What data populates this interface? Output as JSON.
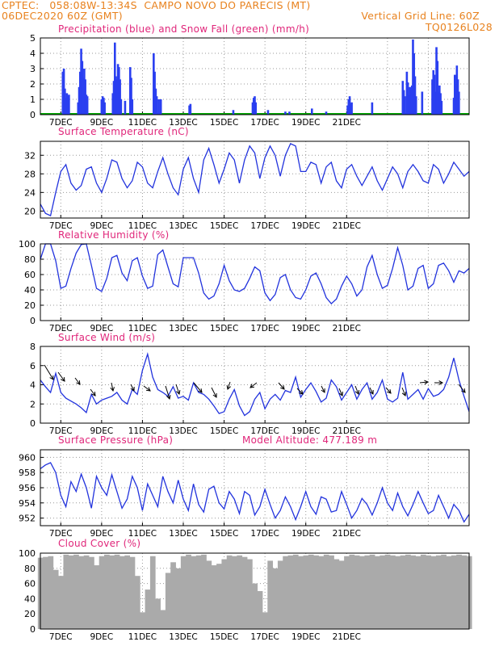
{
  "header": {
    "line1": "CPTEC:   058:08W-13:34S  CAMPO NOVO DO PARECIS (MT)",
    "line2_left": "06DEC2020 60Z (GMT)",
    "line2_right": "Vertical Grid Line: 60Z",
    "run_code": "TQ0126L028"
  },
  "x_tick_labels": [
    "7DEC",
    "9DEC",
    "11DEC",
    "13DEC",
    "15DEC",
    "17DEC",
    "19DEC",
    "21DEC"
  ],
  "colors": {
    "line": "#2233dd",
    "bar": "#2a3ff0",
    "snow": "#00aa00",
    "cloud": "#aaaaaa",
    "title": "#e0267a",
    "header": "#e8821e"
  },
  "chart_data": [
    {
      "type": "bar",
      "title": "Precipitation (blue) and Snow Fall (green) (mm/h)",
      "series": [
        {
          "name": "Precipitation"
        },
        {
          "name": "Snow Fall"
        }
      ],
      "y_ticks": [
        "0",
        "1",
        "2",
        "3",
        "4",
        "5"
      ],
      "ylim": [
        0,
        5
      ],
      "x_unit": "days since 6DEC 00Z",
      "bars": [
        [
          1.1,
          2.8
        ],
        [
          1.15,
          3.0
        ],
        [
          1.2,
          1.7
        ],
        [
          1.25,
          1.1
        ],
        [
          1.3,
          1.4
        ],
        [
          1.35,
          1.2
        ],
        [
          1.4,
          1.3
        ],
        [
          1.85,
          0.8
        ],
        [
          1.9,
          1.8
        ],
        [
          1.95,
          2.8
        ],
        [
          2.0,
          4.3
        ],
        [
          2.05,
          3.5
        ],
        [
          2.1,
          2.4
        ],
        [
          2.15,
          3.0
        ],
        [
          2.2,
          2.3
        ],
        [
          2.25,
          1.3
        ],
        [
          2.3,
          1.2
        ],
        [
          3.0,
          1.0
        ],
        [
          3.05,
          1.2
        ],
        [
          3.1,
          1.1
        ],
        [
          3.15,
          0.8
        ],
        [
          3.55,
          1.4
        ],
        [
          3.6,
          2.2
        ],
        [
          3.65,
          4.7
        ],
        [
          3.7,
          2.5
        ],
        [
          3.75,
          2.3
        ],
        [
          3.8,
          3.3
        ],
        [
          3.85,
          3.1
        ],
        [
          3.9,
          2.3
        ],
        [
          3.95,
          1.0
        ],
        [
          4.15,
          0.9
        ],
        [
          4.4,
          3.1
        ],
        [
          4.45,
          2.4
        ],
        [
          4.5,
          1.0
        ],
        [
          5.55,
          4.0
        ],
        [
          5.6,
          2.8
        ],
        [
          5.65,
          1.7
        ],
        [
          5.7,
          1.2
        ],
        [
          5.8,
          1.0
        ],
        [
          5.9,
          1.0
        ],
        [
          7.3,
          0.6
        ],
        [
          7.35,
          0.7
        ],
        [
          9.45,
          0.3
        ],
        [
          10.4,
          0.8
        ],
        [
          10.45,
          1.1
        ],
        [
          10.5,
          1.2
        ],
        [
          10.55,
          0.8
        ],
        [
          11.15,
          0.3
        ],
        [
          12.0,
          0.2
        ],
        [
          12.2,
          0.2
        ],
        [
          13.3,
          0.4
        ],
        [
          14.0,
          0.2
        ],
        [
          15.05,
          0.6
        ],
        [
          15.1,
          1.0
        ],
        [
          15.15,
          1.2
        ],
        [
          15.2,
          0.7
        ],
        [
          15.25,
          0.8
        ],
        [
          16.25,
          0.8
        ],
        [
          17.75,
          2.2
        ],
        [
          17.8,
          1.6
        ],
        [
          17.85,
          1.2
        ],
        [
          17.95,
          2.8
        ],
        [
          18.0,
          2.1
        ],
        [
          18.05,
          1.3
        ],
        [
          18.1,
          1.8
        ],
        [
          18.15,
          1.6
        ],
        [
          18.2,
          1.9
        ],
        [
          18.25,
          4.9
        ],
        [
          18.3,
          4.0
        ],
        [
          18.35,
          2.5
        ],
        [
          18.4,
          1.2
        ],
        [
          18.7,
          1.5
        ],
        [
          19.2,
          2.3
        ],
        [
          19.25,
          2.9
        ],
        [
          19.3,
          2.6
        ],
        [
          19.35,
          1.5
        ],
        [
          19.4,
          4.4
        ],
        [
          19.45,
          3.5
        ],
        [
          19.5,
          1.5
        ],
        [
          19.55,
          1.9
        ],
        [
          19.6,
          1.4
        ],
        [
          19.65,
          0.9
        ],
        [
          20.25,
          1.1
        ],
        [
          20.3,
          2.6
        ],
        [
          20.35,
          2.0
        ],
        [
          20.4,
          3.2
        ],
        [
          20.45,
          2.3
        ],
        [
          20.5,
          1.5
        ]
      ]
    },
    {
      "type": "line",
      "title": "Surface Temperature (nC)",
      "y_ticks": [
        "20",
        "24",
        "28",
        "32"
      ],
      "ylim": [
        18.5,
        35
      ],
      "x_unit": "days since 6DEC 00Z",
      "x": [
        0.0,
        0.25,
        0.5,
        0.75,
        1.0,
        1.25,
        1.5,
        1.75,
        2.0,
        2.25,
        2.5,
        2.75,
        3.0,
        3.25,
        3.5,
        3.75,
        4.0,
        4.25,
        4.5,
        4.75,
        5.0,
        5.25,
        5.5,
        5.75,
        6.0,
        6.25,
        6.5,
        6.75,
        7.0,
        7.25,
        7.5,
        7.75,
        8.0,
        8.25,
        8.5,
        8.75,
        9.0,
        9.25,
        9.5,
        9.75,
        10.0,
        10.25,
        10.5,
        10.75,
        11.0,
        11.25,
        11.5,
        11.75,
        12.0,
        12.25,
        12.5,
        12.75,
        13.0,
        13.25,
        13.5,
        13.75,
        14.0,
        14.25,
        14.5,
        14.75,
        15.0,
        15.25,
        15.5,
        15.75,
        16.0,
        16.25,
        16.5,
        16.75,
        17.0,
        17.25,
        17.5,
        17.75,
        18.0,
        18.25,
        18.5,
        18.75,
        19.0,
        19.25,
        19.5,
        19.75,
        20.0,
        20.25,
        20.5,
        20.75,
        21.0
      ],
      "values": [
        21.5,
        19.5,
        19.0,
        24.0,
        28.5,
        30.0,
        26.0,
        24.5,
        25.5,
        29.0,
        29.5,
        26.0,
        24.0,
        27.0,
        31.0,
        30.5,
        27.0,
        25.0,
        26.5,
        30.5,
        29.5,
        26.0,
        25.0,
        28.5,
        31.5,
        28.0,
        25.0,
        23.5,
        29.0,
        31.5,
        27.0,
        24.0,
        31.0,
        33.5,
        30.0,
        26.0,
        29.0,
        32.5,
        31.0,
        26.0,
        31.0,
        34.0,
        32.5,
        27.0,
        31.5,
        34.0,
        32.0,
        27.5,
        32.0,
        34.5,
        34.0,
        28.5,
        28.5,
        30.5,
        30.0,
        26.0,
        29.5,
        30.5,
        26.5,
        25.0,
        29.0,
        30.0,
        27.5,
        25.5,
        27.5,
        29.5,
        26.5,
        24.5,
        27.0,
        29.5,
        28.0,
        25.0,
        28.5,
        30.0,
        28.5,
        26.5,
        26.0,
        30.0,
        29.0,
        26.0,
        28.0,
        30.5,
        29.0,
        27.5,
        28.5
      ]
    },
    {
      "type": "line",
      "title": "Relative Humidity (%)",
      "y_ticks": [
        "0",
        "20",
        "40",
        "60",
        "80",
        "100"
      ],
      "ylim": [
        0,
        100
      ],
      "x_unit": "days since 6DEC 00Z",
      "x": [
        0.0,
        0.25,
        0.5,
        0.75,
        1.0,
        1.25,
        1.5,
        1.75,
        2.0,
        2.25,
        2.5,
        2.75,
        3.0,
        3.25,
        3.5,
        3.75,
        4.0,
        4.25,
        4.5,
        4.75,
        5.0,
        5.25,
        5.5,
        5.75,
        6.0,
        6.25,
        6.5,
        6.75,
        7.0,
        7.25,
        7.5,
        7.75,
        8.0,
        8.25,
        8.5,
        8.75,
        9.0,
        9.25,
        9.5,
        9.75,
        10.0,
        10.25,
        10.5,
        10.75,
        11.0,
        11.25,
        11.5,
        11.75,
        12.0,
        12.25,
        12.5,
        12.75,
        13.0,
        13.25,
        13.5,
        13.75,
        14.0,
        14.25,
        14.5,
        14.75,
        15.0,
        15.25,
        15.5,
        15.75,
        16.0,
        16.25,
        16.5,
        16.75,
        17.0,
        17.25,
        17.5,
        17.75,
        18.0,
        18.25,
        18.5,
        18.75,
        19.0,
        19.25,
        19.5,
        19.75,
        20.0,
        20.25,
        20.5,
        20.75,
        21.0
      ],
      "values": [
        80,
        100,
        100,
        78,
        42,
        45,
        68,
        88,
        99,
        100,
        72,
        42,
        38,
        55,
        82,
        85,
        62,
        52,
        78,
        82,
        58,
        42,
        45,
        86,
        92,
        70,
        48,
        44,
        82,
        82,
        82,
        62,
        36,
        28,
        32,
        48,
        72,
        52,
        40,
        38,
        42,
        55,
        70,
        65,
        36,
        26,
        34,
        56,
        60,
        40,
        30,
        28,
        40,
        58,
        62,
        48,
        30,
        22,
        28,
        45,
        58,
        48,
        32,
        40,
        70,
        85,
        60,
        42,
        46,
        68,
        95,
        72,
        40,
        45,
        68,
        72,
        42,
        48,
        72,
        75,
        65,
        50,
        65,
        62,
        68
      ]
    },
    {
      "type": "line",
      "title": "Surface Wind (m/s)",
      "y_ticks": [
        "0",
        "2",
        "4",
        "6",
        "8"
      ],
      "ylim": [
        0,
        8
      ],
      "x_unit": "days since 6DEC 00Z",
      "x": [
        0.0,
        0.25,
        0.5,
        0.75,
        1.0,
        1.25,
        1.5,
        1.75,
        2.0,
        2.25,
        2.5,
        2.75,
        3.0,
        3.25,
        3.5,
        3.75,
        4.0,
        4.25,
        4.5,
        4.75,
        5.0,
        5.25,
        5.5,
        5.75,
        6.0,
        6.25,
        6.5,
        6.75,
        7.0,
        7.25,
        7.5,
        7.75,
        8.0,
        8.25,
        8.5,
        8.75,
        9.0,
        9.25,
        9.5,
        9.75,
        10.0,
        10.25,
        10.5,
        10.75,
        11.0,
        11.25,
        11.5,
        11.75,
        12.0,
        12.25,
        12.5,
        12.75,
        13.0,
        13.25,
        13.5,
        13.75,
        14.0,
        14.25,
        14.5,
        14.75,
        15.0,
        15.25,
        15.5,
        15.75,
        16.0,
        16.25,
        16.5,
        16.75,
        17.0,
        17.25,
        17.5,
        17.75,
        18.0,
        18.25,
        18.5,
        18.75,
        19.0,
        19.25,
        19.5,
        19.75,
        20.0,
        20.25,
        20.5,
        20.75,
        21.0
      ],
      "values": [
        4.5,
        3.8,
        3.2,
        5.2,
        3.2,
        2.6,
        2.3,
        2.0,
        1.6,
        1.1,
        3.0,
        2.0,
        2.4,
        2.6,
        2.8,
        3.2,
        2.4,
        2.0,
        3.5,
        3.0,
        5.5,
        7.2,
        4.8,
        3.5,
        3.2,
        2.8,
        3.8,
        2.6,
        2.8,
        2.4,
        4.2,
        3.2,
        3.0,
        2.5,
        1.8,
        1.0,
        1.2,
        2.5,
        3.5,
        1.8,
        0.8,
        1.2,
        2.5,
        3.2,
        1.5,
        2.5,
        3.0,
        2.4,
        3.4,
        3.2,
        4.8,
        2.7,
        3.5,
        4.2,
        3.3,
        2.2,
        2.6,
        4.5,
        3.8,
        2.4,
        3.2,
        4.0,
        2.5,
        3.5,
        4.2,
        2.5,
        3.2,
        4.5,
        2.5,
        2.2,
        2.6,
        5.3,
        2.5,
        3.0,
        3.5,
        2.5,
        3.6,
        2.8,
        3.0,
        3.5,
        4.8,
        6.8,
        4.5,
        2.8,
        1.2
      ]
    },
    {
      "type": "line",
      "title": "Surface Pressure (hPa)",
      "annotation": "Model Altitude: 477.189 m",
      "y_ticks": [
        "952",
        "954",
        "956",
        "958",
        "960"
      ],
      "ylim": [
        951,
        961
      ],
      "x_unit": "days since 6DEC 00Z",
      "x": [
        0.0,
        0.25,
        0.5,
        0.75,
        1.0,
        1.25,
        1.5,
        1.75,
        2.0,
        2.25,
        2.5,
        2.75,
        3.0,
        3.25,
        3.5,
        3.75,
        4.0,
        4.25,
        4.5,
        4.75,
        5.0,
        5.25,
        5.5,
        5.75,
        6.0,
        6.25,
        6.5,
        6.75,
        7.0,
        7.25,
        7.5,
        7.75,
        8.0,
        8.25,
        8.5,
        8.75,
        9.0,
        9.25,
        9.5,
        9.75,
        10.0,
        10.25,
        10.5,
        10.75,
        11.0,
        11.25,
        11.5,
        11.75,
        12.0,
        12.25,
        12.5,
        12.75,
        13.0,
        13.25,
        13.5,
        13.75,
        14.0,
        14.25,
        14.5,
        14.75,
        15.0,
        15.25,
        15.5,
        15.75,
        16.0,
        16.25,
        16.5,
        16.75,
        17.0,
        17.25,
        17.5,
        17.75,
        18.0,
        18.25,
        18.5,
        18.75,
        19.0,
        19.25,
        19.5,
        19.75,
        20.0,
        20.25,
        20.5,
        20.75,
        21.0
      ],
      "values": [
        958.5,
        959.0,
        959.3,
        958.0,
        955.0,
        953.5,
        956.8,
        955.5,
        957.8,
        956.0,
        953.3,
        957.5,
        956.0,
        955.0,
        957.7,
        955.5,
        953.3,
        954.5,
        957.5,
        956.0,
        953.0,
        956.5,
        955.0,
        953.5,
        957.5,
        955.5,
        954.0,
        957.0,
        954.5,
        953.0,
        956.5,
        953.8,
        952.8,
        955.8,
        956.2,
        954.0,
        953.2,
        955.5,
        954.5,
        952.6,
        955.5,
        955.0,
        952.4,
        953.5,
        955.8,
        953.8,
        952.0,
        953.0,
        954.8,
        953.5,
        951.8,
        953.5,
        955.5,
        953.5,
        952.5,
        954.8,
        954.5,
        952.8,
        953.0,
        955.5,
        953.8,
        952.0,
        953.0,
        954.6,
        953.8,
        952.4,
        954.0,
        956.0,
        954.0,
        953.0,
        955.3,
        953.5,
        952.3,
        953.8,
        955.5,
        954.0,
        952.6,
        953.0,
        955.0,
        953.5,
        952.0,
        953.8,
        953.0,
        951.5,
        952.5
      ]
    },
    {
      "type": "area",
      "title": "Cloud Cover (%)",
      "y_ticks": [
        "0",
        "20",
        "40",
        "60",
        "80",
        "100"
      ],
      "ylim": [
        0,
        100
      ],
      "x_unit": "days since 6DEC 00Z",
      "x": [
        0.0,
        0.25,
        0.5,
        0.75,
        1.0,
        1.25,
        1.5,
        1.75,
        2.0,
        2.25,
        2.5,
        2.75,
        3.0,
        3.25,
        3.5,
        3.75,
        4.0,
        4.25,
        4.5,
        4.75,
        5.0,
        5.25,
        5.5,
        5.75,
        6.0,
        6.25,
        6.5,
        6.75,
        7.0,
        7.25,
        7.5,
        7.75,
        8.0,
        8.25,
        8.5,
        8.75,
        9.0,
        9.25,
        9.5,
        9.75,
        10.0,
        10.25,
        10.5,
        10.75,
        11.0,
        11.25,
        11.5,
        11.75,
        12.0,
        12.25,
        12.5,
        12.75,
        13.0,
        13.25,
        13.5,
        13.75,
        14.0,
        14.25,
        14.5,
        14.75,
        15.0,
        15.25,
        15.5,
        15.75,
        16.0,
        16.25,
        16.5,
        16.75,
        17.0,
        17.25,
        17.5,
        17.75,
        18.0,
        18.25,
        18.5,
        18.75,
        19.0,
        19.25,
        19.5,
        19.75,
        20.0,
        20.25,
        20.5,
        20.75,
        21.0
      ],
      "values": [
        94,
        95,
        96,
        78,
        70,
        98,
        97,
        98,
        96,
        97,
        95,
        84,
        96,
        98,
        97,
        98,
        96,
        97,
        95,
        70,
        22,
        52,
        96,
        40,
        25,
        74,
        88,
        80,
        96,
        98,
        96,
        97,
        98,
        90,
        84,
        86,
        92,
        97,
        96,
        97,
        95,
        92,
        60,
        50,
        22,
        90,
        80,
        90,
        96,
        97,
        98,
        96,
        97,
        98,
        97,
        96,
        98,
        97,
        92,
        90,
        96,
        98,
        97,
        96,
        97,
        98,
        96,
        97,
        98,
        97,
        96,
        97,
        98,
        97,
        96,
        98,
        97,
        96,
        97,
        98,
        96,
        97,
        98,
        97,
        96
      ]
    }
  ]
}
